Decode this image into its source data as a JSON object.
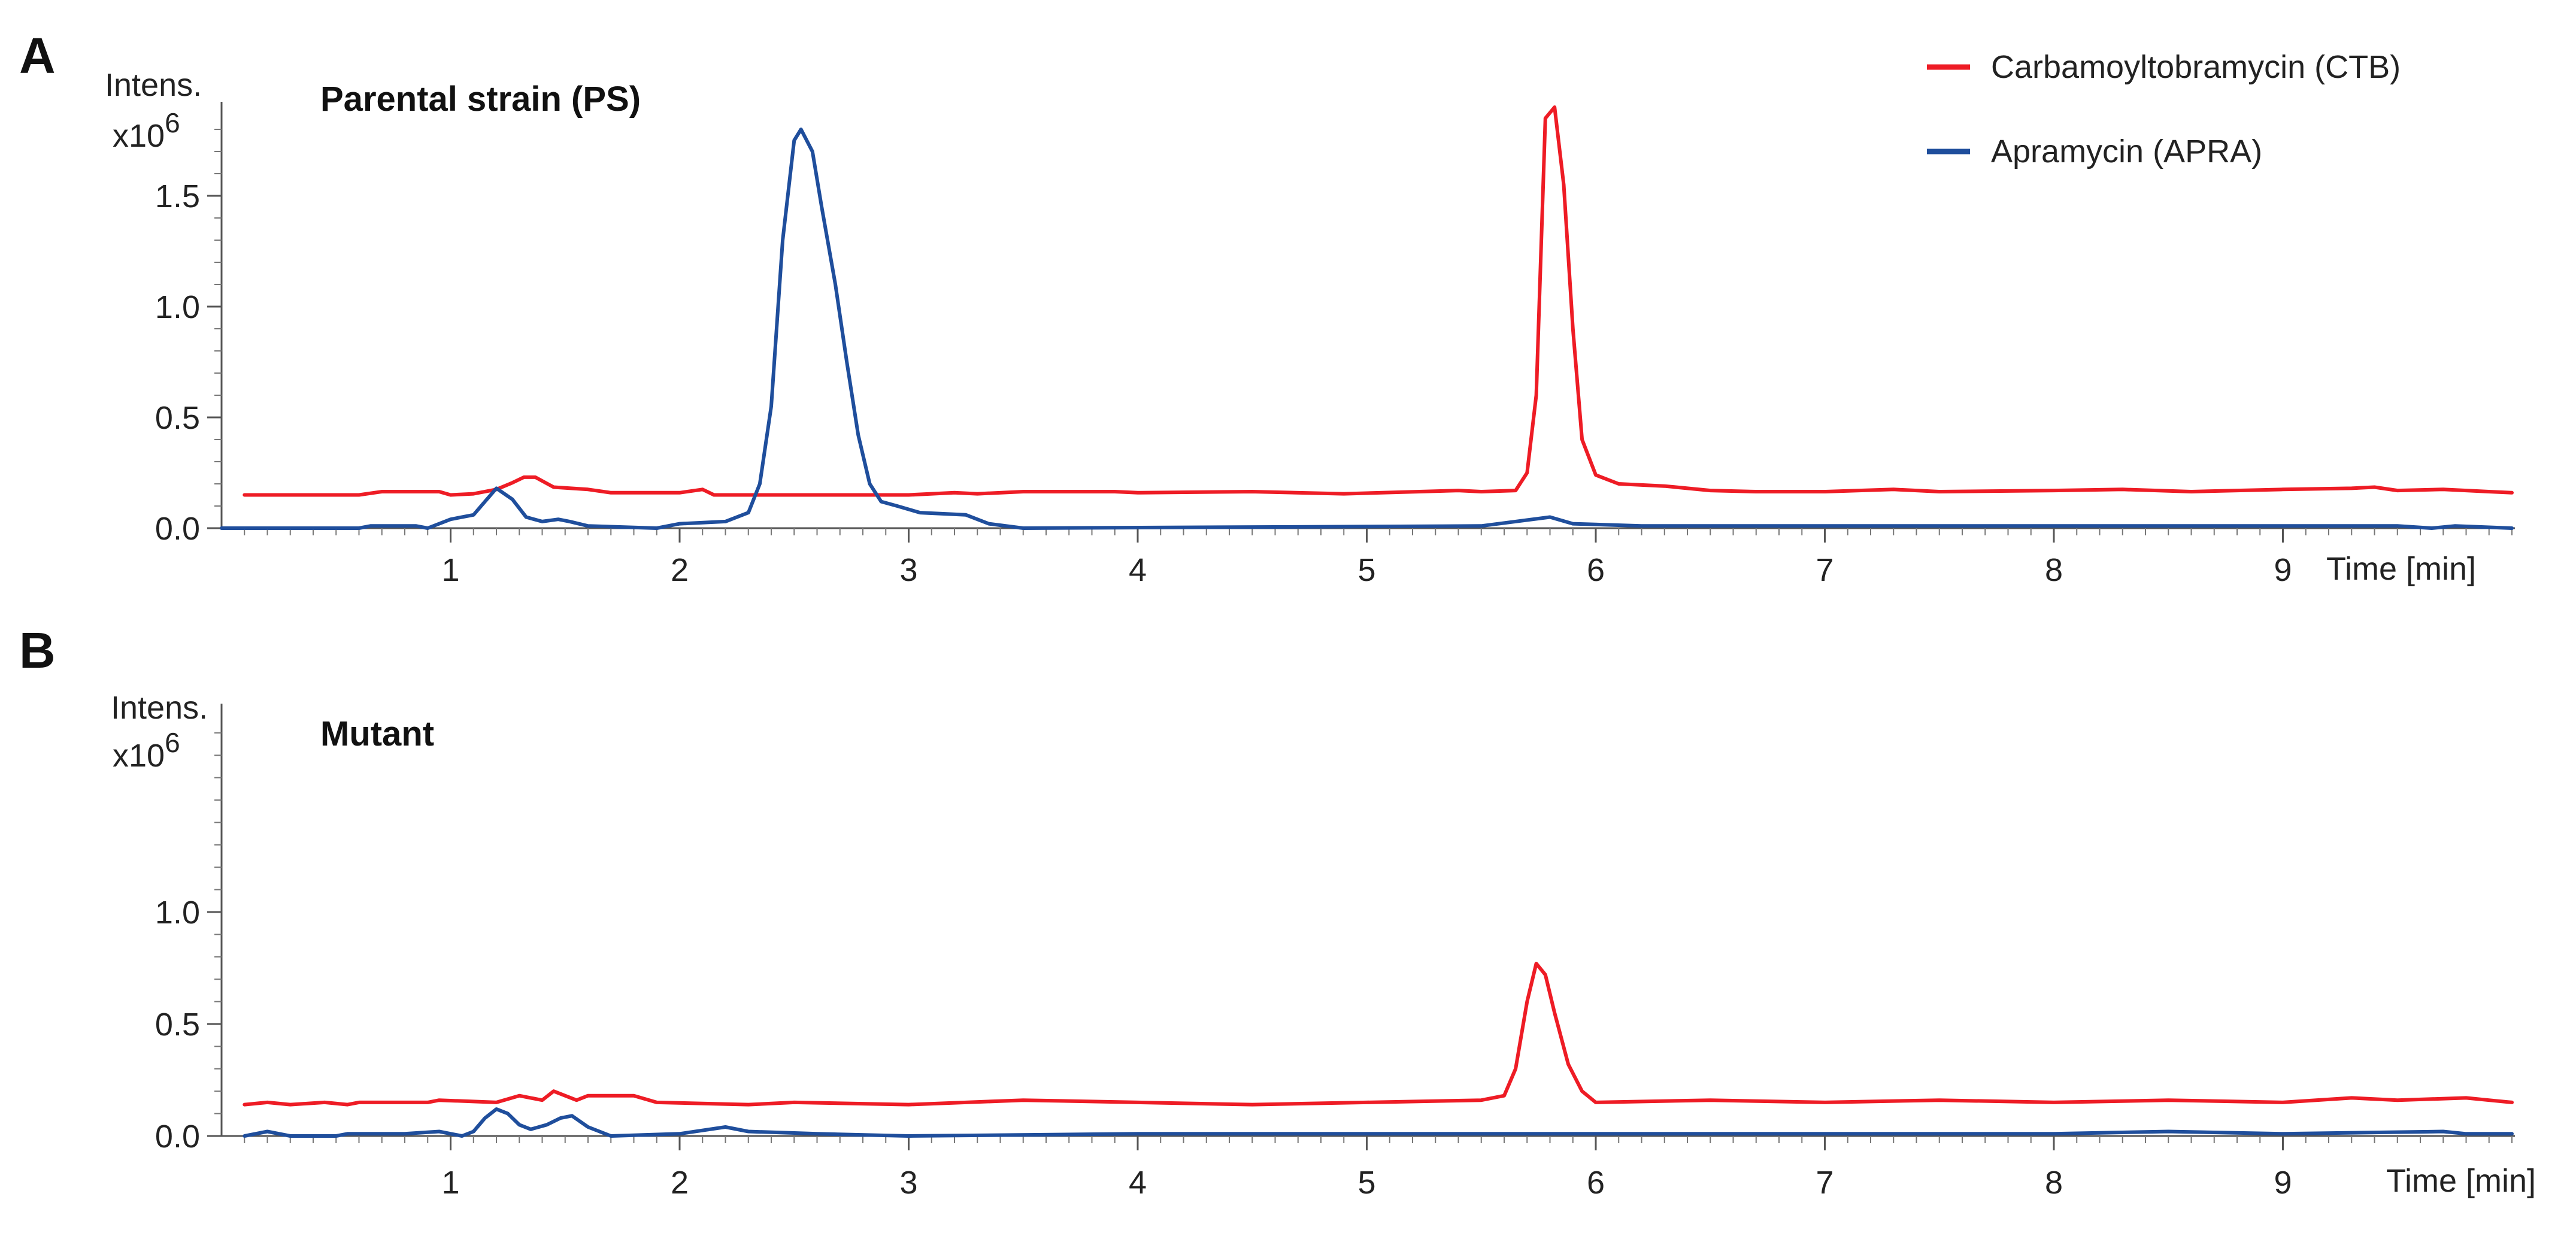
{
  "legend": {
    "entries": [
      {
        "label": "Carbamoyltobramycin (CTB)",
        "color": "#ee1c25"
      },
      {
        "label": "Apramycin (APRA)",
        "color": "#1f4e9c"
      }
    ],
    "placement": "top-right"
  },
  "chart_data": [
    {
      "type": "line",
      "panel": "A",
      "title": "Parental strain (PS)",
      "ylabel_line1": "Intens.",
      "ylabel_line2": "x10",
      "ylabel_exponent": "6",
      "xlabel": "Time [min]",
      "xlim": [
        0.0,
        10.0
      ],
      "ylim": [
        0.0,
        1.85
      ],
      "xticks": [
        {
          "value": 1,
          "label": "1"
        },
        {
          "value": 2,
          "label": "2"
        },
        {
          "value": 3,
          "label": "3"
        },
        {
          "value": 4,
          "label": "4"
        },
        {
          "value": 5,
          "label": "5"
        },
        {
          "value": 6,
          "label": "6"
        },
        {
          "value": 7,
          "label": "7"
        },
        {
          "value": 8,
          "label": "8"
        },
        {
          "value": 9,
          "label": "9"
        }
      ],
      "yticks": [
        {
          "value": 0.0,
          "label": "0.0"
        },
        {
          "value": 0.5,
          "label": "0.5"
        },
        {
          "value": 1.0,
          "label": "1.0"
        },
        {
          "value": 1.5,
          "label": "1.5"
        }
      ],
      "grid": false,
      "series": [
        {
          "name": "Carbamoyltobramycin (CTB)",
          "color": "#ee1c25",
          "points": [
            [
              0.1,
              0.15
            ],
            [
              0.6,
              0.15
            ],
            [
              0.7,
              0.165
            ],
            [
              0.95,
              0.165
            ],
            [
              1.0,
              0.15
            ],
            [
              1.1,
              0.155
            ],
            [
              1.2,
              0.175
            ],
            [
              1.27,
              0.205
            ],
            [
              1.32,
              0.23
            ],
            [
              1.37,
              0.23
            ],
            [
              1.45,
              0.185
            ],
            [
              1.6,
              0.175
            ],
            [
              1.7,
              0.16
            ],
            [
              2.0,
              0.16
            ],
            [
              2.1,
              0.175
            ],
            [
              2.15,
              0.15
            ],
            [
              3.0,
              0.15
            ],
            [
              3.2,
              0.16
            ],
            [
              3.3,
              0.155
            ],
            [
              3.5,
              0.165
            ],
            [
              3.9,
              0.165
            ],
            [
              4.0,
              0.16
            ],
            [
              4.5,
              0.165
            ],
            [
              4.9,
              0.155
            ],
            [
              5.4,
              0.17
            ],
            [
              5.5,
              0.165
            ],
            [
              5.65,
              0.17
            ],
            [
              5.7,
              0.25
            ],
            [
              5.74,
              0.6
            ],
            [
              5.78,
              1.85
            ],
            [
              5.82,
              1.9
            ],
            [
              5.86,
              1.55
            ],
            [
              5.9,
              0.9
            ],
            [
              5.94,
              0.4
            ],
            [
              6.0,
              0.24
            ],
            [
              6.1,
              0.2
            ],
            [
              6.3,
              0.19
            ],
            [
              6.5,
              0.17
            ],
            [
              6.7,
              0.165
            ],
            [
              7.0,
              0.165
            ],
            [
              7.3,
              0.175
            ],
            [
              7.5,
              0.165
            ],
            [
              8.0,
              0.17
            ],
            [
              8.3,
              0.175
            ],
            [
              8.6,
              0.165
            ],
            [
              9.0,
              0.175
            ],
            [
              9.3,
              0.18
            ],
            [
              9.4,
              0.185
            ],
            [
              9.5,
              0.17
            ],
            [
              9.7,
              0.175
            ],
            [
              9.9,
              0.165
            ],
            [
              10.0,
              0.16
            ]
          ]
        },
        {
          "name": "Apramycin (APRA)",
          "color": "#1f4e9c",
          "points": [
            [
              0.0,
              0.0
            ],
            [
              0.6,
              0.0
            ],
            [
              0.65,
              0.01
            ],
            [
              0.85,
              0.01
            ],
            [
              0.9,
              0.0
            ],
            [
              1.0,
              0.04
            ],
            [
              1.1,
              0.06
            ],
            [
              1.15,
              0.12
            ],
            [
              1.2,
              0.18
            ],
            [
              1.27,
              0.13
            ],
            [
              1.33,
              0.05
            ],
            [
              1.4,
              0.03
            ],
            [
              1.47,
              0.04
            ],
            [
              1.52,
              0.03
            ],
            [
              1.6,
              0.01
            ],
            [
              1.9,
              0.0
            ],
            [
              2.0,
              0.02
            ],
            [
              2.2,
              0.03
            ],
            [
              2.3,
              0.07
            ],
            [
              2.35,
              0.2
            ],
            [
              2.4,
              0.55
            ],
            [
              2.45,
              1.3
            ],
            [
              2.5,
              1.75
            ],
            [
              2.53,
              1.8
            ],
            [
              2.58,
              1.7
            ],
            [
              2.62,
              1.45
            ],
            [
              2.68,
              1.1
            ],
            [
              2.73,
              0.75
            ],
            [
              2.78,
              0.42
            ],
            [
              2.83,
              0.2
            ],
            [
              2.88,
              0.12
            ],
            [
              2.95,
              0.1
            ],
            [
              3.05,
              0.07
            ],
            [
              3.25,
              0.06
            ],
            [
              3.35,
              0.02
            ],
            [
              3.5,
              0.0
            ],
            [
              5.5,
              0.01
            ],
            [
              5.8,
              0.05
            ],
            [
              5.9,
              0.02
            ],
            [
              6.2,
              0.01
            ],
            [
              7.0,
              0.01
            ],
            [
              8.0,
              0.01
            ],
            [
              9.0,
              0.01
            ],
            [
              9.5,
              0.01
            ],
            [
              9.65,
              0.0
            ],
            [
              9.75,
              0.01
            ],
            [
              10.0,
              0.0
            ]
          ]
        }
      ]
    },
    {
      "type": "line",
      "panel": "B",
      "title": "Mutant",
      "ylabel_line1": "Intens.",
      "ylabel_line2": "x10",
      "ylabel_exponent": "6",
      "xlabel": "Time [min]",
      "xlim": [
        0.0,
        10.0
      ],
      "ylim": [
        0.0,
        1.85
      ],
      "xticks": [
        {
          "value": 1,
          "label": "1"
        },
        {
          "value": 2,
          "label": "2"
        },
        {
          "value": 3,
          "label": "3"
        },
        {
          "value": 4,
          "label": "4"
        },
        {
          "value": 5,
          "label": "5"
        },
        {
          "value": 6,
          "label": "6"
        },
        {
          "value": 7,
          "label": "7"
        },
        {
          "value": 8,
          "label": "8"
        },
        {
          "value": 9,
          "label": "9"
        }
      ],
      "yticks": [
        {
          "value": 0.0,
          "label": "0.0"
        },
        {
          "value": 0.5,
          "label": "0.5"
        },
        {
          "value": 1.0,
          "label": "1.0"
        }
      ],
      "grid": false,
      "series": [
        {
          "name": "Carbamoyltobramycin (CTB)",
          "color": "#ee1c25",
          "points": [
            [
              0.1,
              0.14
            ],
            [
              0.2,
              0.15
            ],
            [
              0.3,
              0.14
            ],
            [
              0.45,
              0.15
            ],
            [
              0.55,
              0.14
            ],
            [
              0.6,
              0.15
            ],
            [
              0.9,
              0.15
            ],
            [
              0.95,
              0.16
            ],
            [
              1.2,
              0.15
            ],
            [
              1.3,
              0.18
            ],
            [
              1.4,
              0.16
            ],
            [
              1.45,
              0.2
            ],
            [
              1.55,
              0.16
            ],
            [
              1.6,
              0.18
            ],
            [
              1.8,
              0.18
            ],
            [
              1.9,
              0.15
            ],
            [
              2.3,
              0.14
            ],
            [
              2.5,
              0.15
            ],
            [
              3.0,
              0.14
            ],
            [
              3.5,
              0.16
            ],
            [
              4.0,
              0.15
            ],
            [
              4.5,
              0.14
            ],
            [
              5.0,
              0.15
            ],
            [
              5.5,
              0.16
            ],
            [
              5.6,
              0.18
            ],
            [
              5.65,
              0.3
            ],
            [
              5.7,
              0.6
            ],
            [
              5.74,
              0.77
            ],
            [
              5.78,
              0.72
            ],
            [
              5.82,
              0.55
            ],
            [
              5.88,
              0.32
            ],
            [
              5.94,
              0.2
            ],
            [
              6.0,
              0.15
            ],
            [
              6.5,
              0.16
            ],
            [
              7.0,
              0.15
            ],
            [
              7.5,
              0.16
            ],
            [
              8.0,
              0.15
            ],
            [
              8.5,
              0.16
            ],
            [
              9.0,
              0.15
            ],
            [
              9.3,
              0.17
            ],
            [
              9.5,
              0.16
            ],
            [
              9.8,
              0.17
            ],
            [
              9.9,
              0.16
            ],
            [
              10.0,
              0.15
            ]
          ]
        },
        {
          "name": "Apramycin (APRA)",
          "color": "#1f4e9c",
          "points": [
            [
              0.1,
              0.0
            ],
            [
              0.2,
              0.02
            ],
            [
              0.3,
              0.0
            ],
            [
              0.5,
              0.0
            ],
            [
              0.55,
              0.01
            ],
            [
              0.8,
              0.01
            ],
            [
              0.95,
              0.02
            ],
            [
              1.05,
              0.0
            ],
            [
              1.1,
              0.02
            ],
            [
              1.15,
              0.08
            ],
            [
              1.2,
              0.12
            ],
            [
              1.25,
              0.1
            ],
            [
              1.3,
              0.05
            ],
            [
              1.35,
              0.03
            ],
            [
              1.42,
              0.05
            ],
            [
              1.48,
              0.08
            ],
            [
              1.53,
              0.09
            ],
            [
              1.6,
              0.04
            ],
            [
              1.7,
              0.0
            ],
            [
              2.0,
              0.01
            ],
            [
              2.2,
              0.04
            ],
            [
              2.3,
              0.02
            ],
            [
              2.6,
              0.01
            ],
            [
              3.0,
              0.0
            ],
            [
              4.0,
              0.01
            ],
            [
              5.0,
              0.01
            ],
            [
              6.0,
              0.01
            ],
            [
              7.0,
              0.01
            ],
            [
              8.0,
              0.01
            ],
            [
              8.5,
              0.02
            ],
            [
              9.0,
              0.01
            ],
            [
              9.7,
              0.02
            ],
            [
              9.8,
              0.01
            ],
            [
              10.0,
              0.01
            ]
          ]
        }
      ]
    }
  ]
}
